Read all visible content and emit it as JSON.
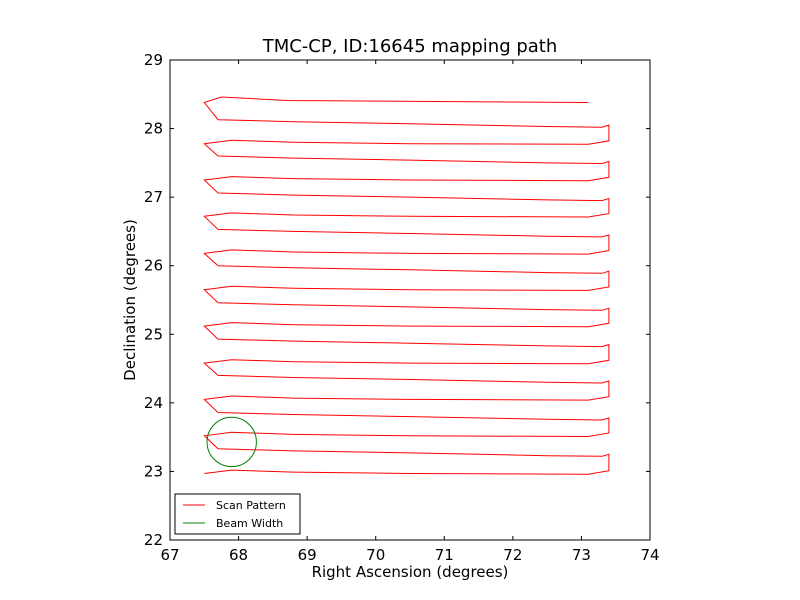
{
  "chart_data": {
    "type": "line",
    "title": "TMC-CP, ID:16645 mapping path",
    "xlabel": "Right Ascension (degrees)",
    "ylabel": "Declination (degrees)",
    "xlim": [
      67,
      74
    ],
    "ylim": [
      22,
      29
    ],
    "xticks": [
      "67",
      "68",
      "69",
      "70",
      "71",
      "72",
      "73",
      "74"
    ],
    "yticks": [
      "22",
      "23",
      "24",
      "25",
      "26",
      "27",
      "28",
      "29"
    ],
    "grid": false,
    "legend_position": "lower-left",
    "series": [
      {
        "name": "Scan Pattern",
        "color": "#ff0000",
        "scan_rows_dec": [
          22.97,
          23.25,
          23.52,
          23.78,
          24.05,
          24.32,
          24.58,
          24.85,
          25.12,
          25.38,
          25.65,
          25.92,
          26.18,
          26.45,
          26.72,
          26.98,
          27.25,
          27.52,
          27.78,
          28.05,
          28.38
        ],
        "ra_west": 67.5,
        "ra_east": 73.4,
        "start": [
          67.5,
          22.97
        ],
        "end": [
          73.1,
          28.38
        ]
      },
      {
        "name": "Beam Width",
        "color": "#008000",
        "center": [
          67.9,
          23.43
        ],
        "radius_deg": 0.36
      }
    ]
  }
}
